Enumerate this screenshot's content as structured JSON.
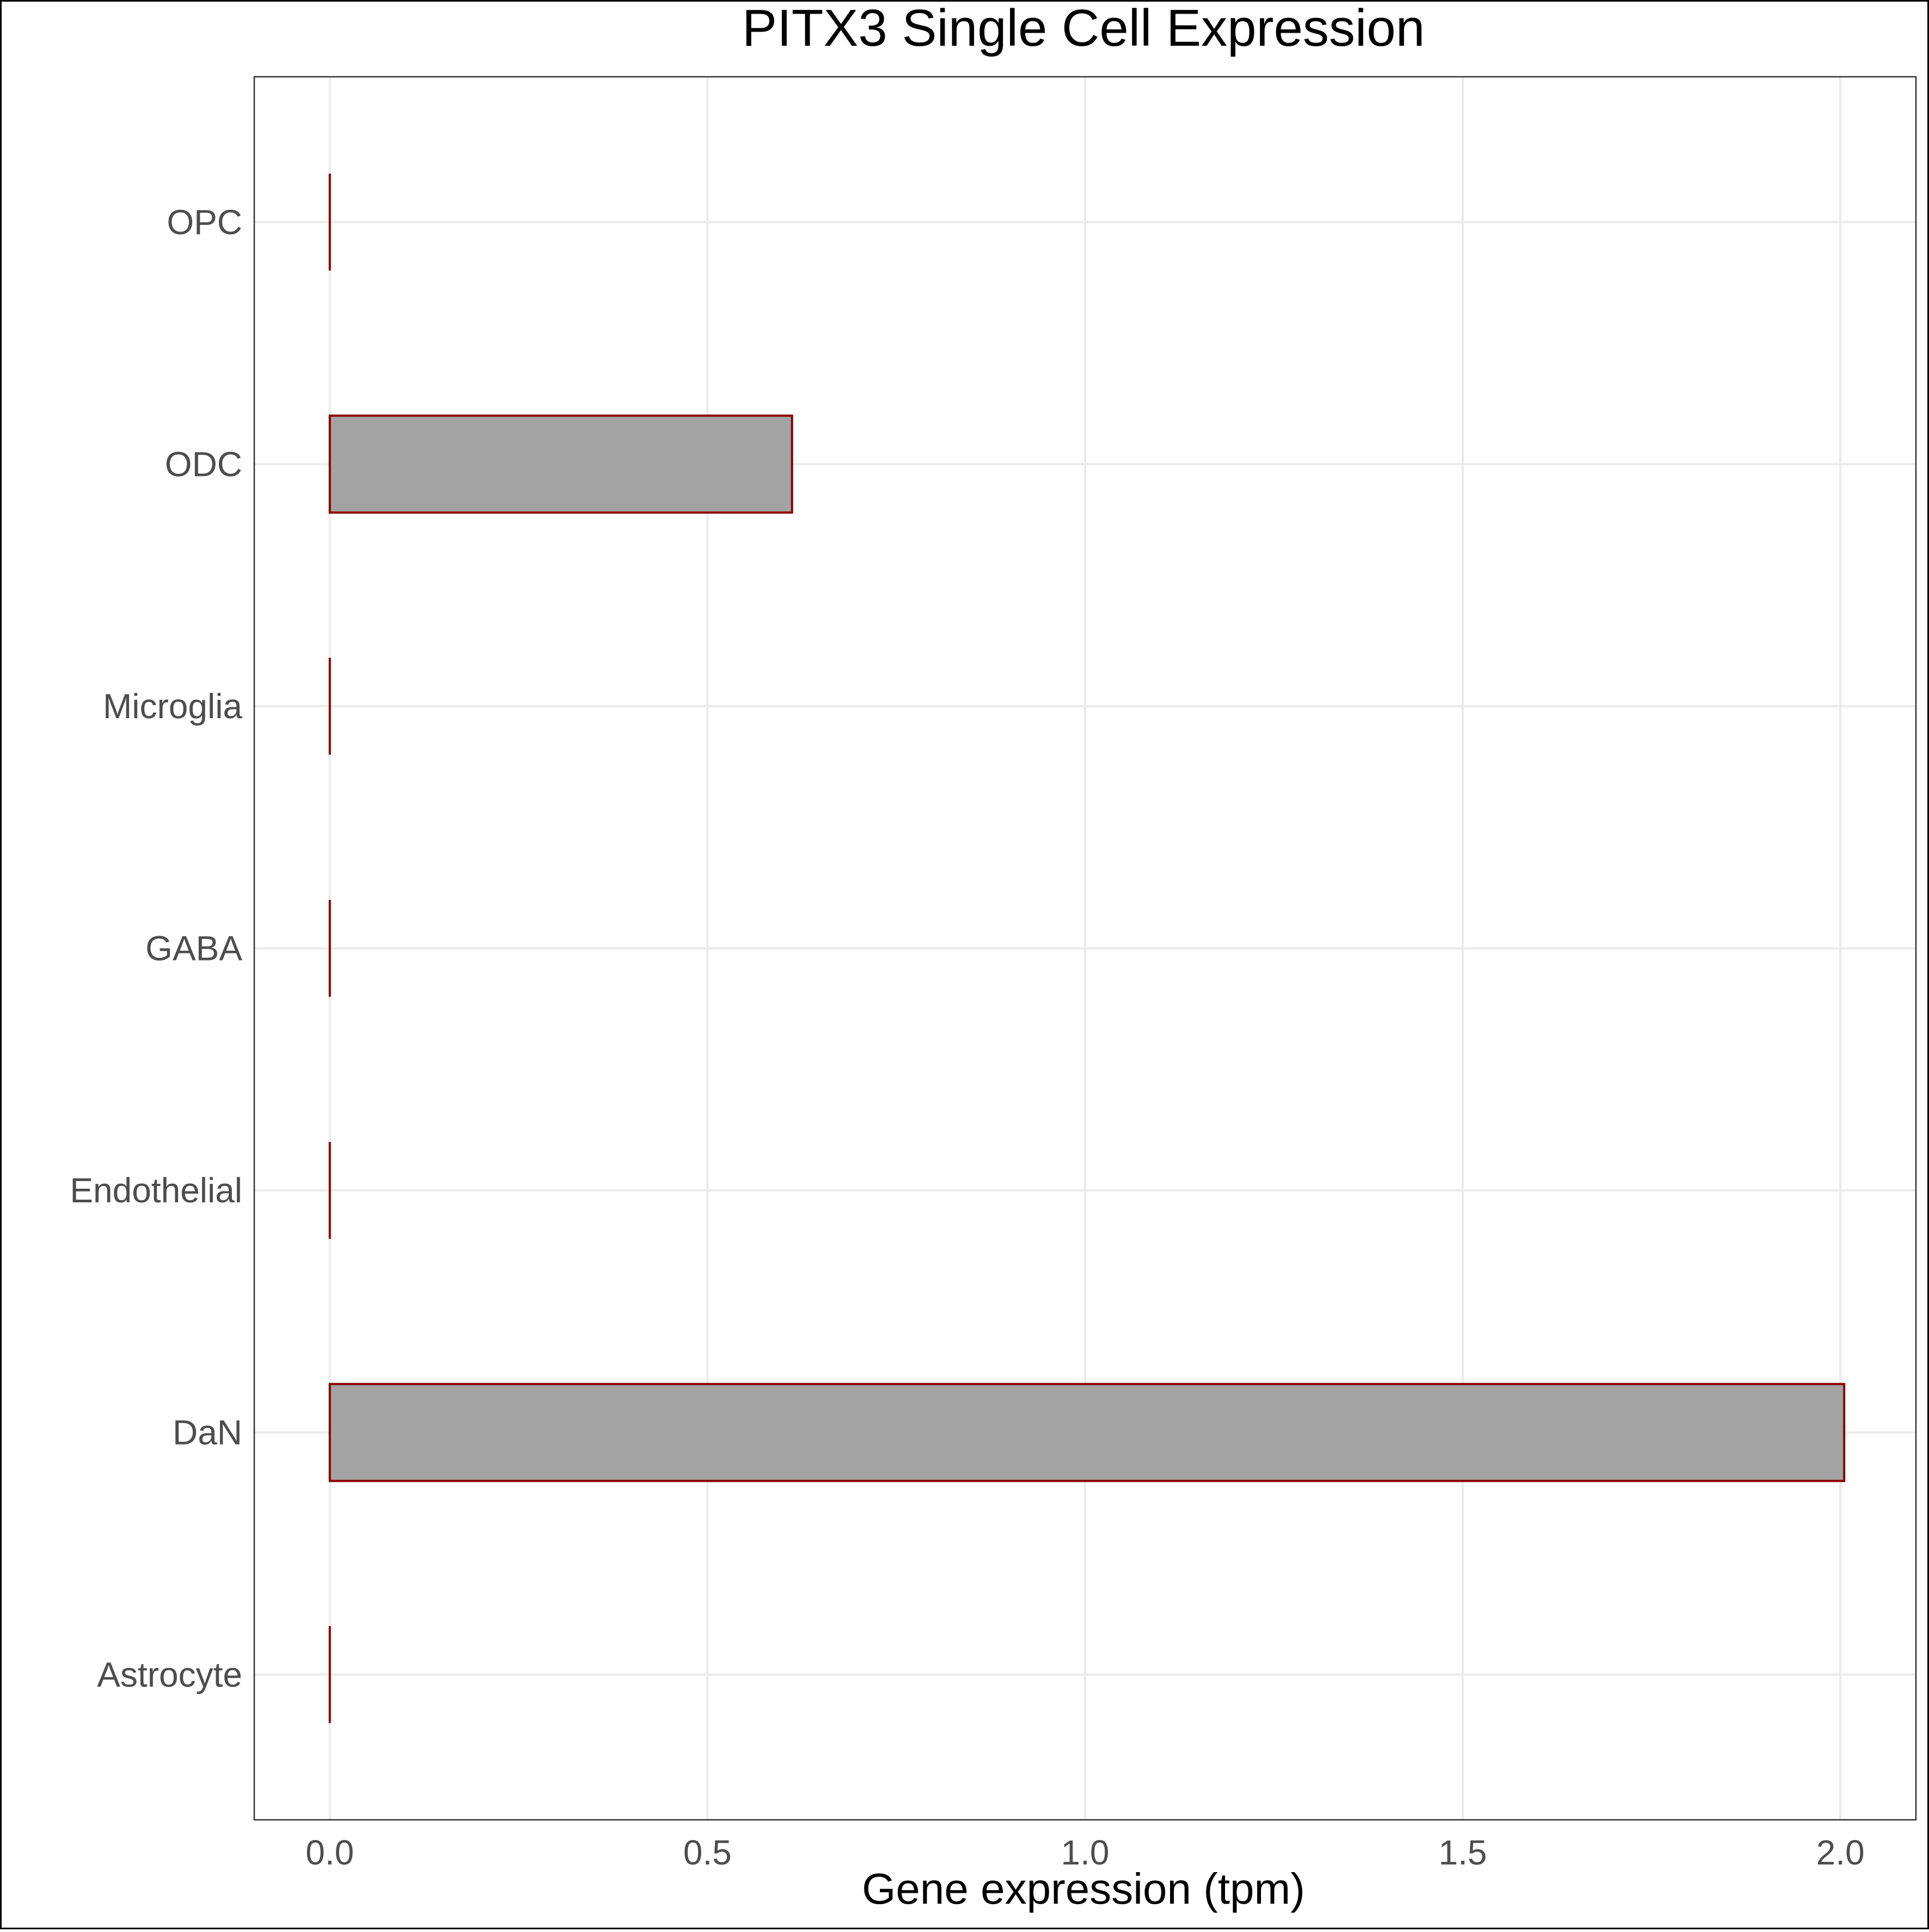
{
  "chart_data": {
    "type": "bar",
    "orientation": "horizontal",
    "title": "PITX3 Single Cell Expression",
    "xlabel": "Gene expression (tpm)",
    "ylabel": "",
    "categories": [
      "Astrocyte",
      "DaN",
      "Endothelial",
      "GABA",
      "Microglia",
      "ODC",
      "OPC"
    ],
    "values": [
      0.0,
      2.005,
      0.0,
      0.0,
      0.0,
      0.612,
      0.0
    ],
    "xlim": [
      -0.1,
      2.1
    ],
    "xticks": [
      0.0,
      0.5,
      1.0,
      1.5,
      2.0
    ],
    "xtick_labels": [
      "0.0",
      "0.5",
      "1.0",
      "1.5",
      "2.0"
    ],
    "grid": true,
    "legend": "none",
    "colors": {
      "bar_fill": "#a3a3a3",
      "bar_stroke": "#8b0000",
      "grid": "#ebebeb",
      "panel_border": "#333333",
      "tick_text": "#4d4d4d",
      "title_text": "#000000"
    }
  }
}
